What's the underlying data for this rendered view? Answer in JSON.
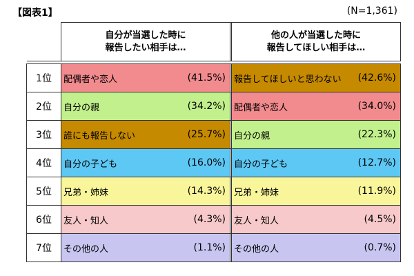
{
  "header": {
    "figure_title": "【図表1】",
    "sample_size": "(N=1,361)"
  },
  "columns": {
    "self_won": {
      "line1": "自分が当選した時に",
      "line2": "報告したい相手は…"
    },
    "other_won": {
      "line1": "他の人が当選した時に",
      "line2": "報告してほしい相手は…"
    }
  },
  "rows": [
    {
      "rank": "1位",
      "a": {
        "label": "配偶者や恋人",
        "pct": "(41.5%)",
        "color": "#f28b8e"
      },
      "b": {
        "label": "報告してほしいと思わない",
        "pct": "(42.6%)",
        "color": "#c68a00"
      }
    },
    {
      "rank": "2位",
      "a": {
        "label": "自分の親",
        "pct": "(34.2%)",
        "color": "#c2f08c"
      },
      "b": {
        "label": "配偶者や恋人",
        "pct": "(34.0%)",
        "color": "#f28b8e"
      }
    },
    {
      "rank": "3位",
      "a": {
        "label": "誰にも報告しない",
        "pct": "(25.7%)",
        "color": "#c68a00"
      },
      "b": {
        "label": "自分の親",
        "pct": "(22.3%)",
        "color": "#c2f08c"
      }
    },
    {
      "rank": "4位",
      "a": {
        "label": "自分の子ども",
        "pct": "(16.0%)",
        "color": "#5ec8f5"
      },
      "b": {
        "label": "自分の子ども",
        "pct": "(12.7%)",
        "color": "#5ec8f5"
      }
    },
    {
      "rank": "5位",
      "a": {
        "label": "兄弟・姉妹",
        "pct": "(14.3%)",
        "color": "#f9f59a"
      },
      "b": {
        "label": "兄弟・姉妹",
        "pct": "(11.9%)",
        "color": "#f9f59a"
      }
    },
    {
      "rank": "6位",
      "a": {
        "label": "友人・知人",
        "pct": "(4.3%)",
        "color": "#f7c9cb"
      },
      "b": {
        "label": "友人・知人",
        "pct": "(4.5%)",
        "color": "#f7c9cb"
      }
    },
    {
      "rank": "7位",
      "a": {
        "label": "その他の人",
        "pct": "(1.1%)",
        "color": "#c8c6f0"
      },
      "b": {
        "label": "その他の人",
        "pct": "(0.7%)",
        "color": "#c8c6f0"
      }
    }
  ]
}
